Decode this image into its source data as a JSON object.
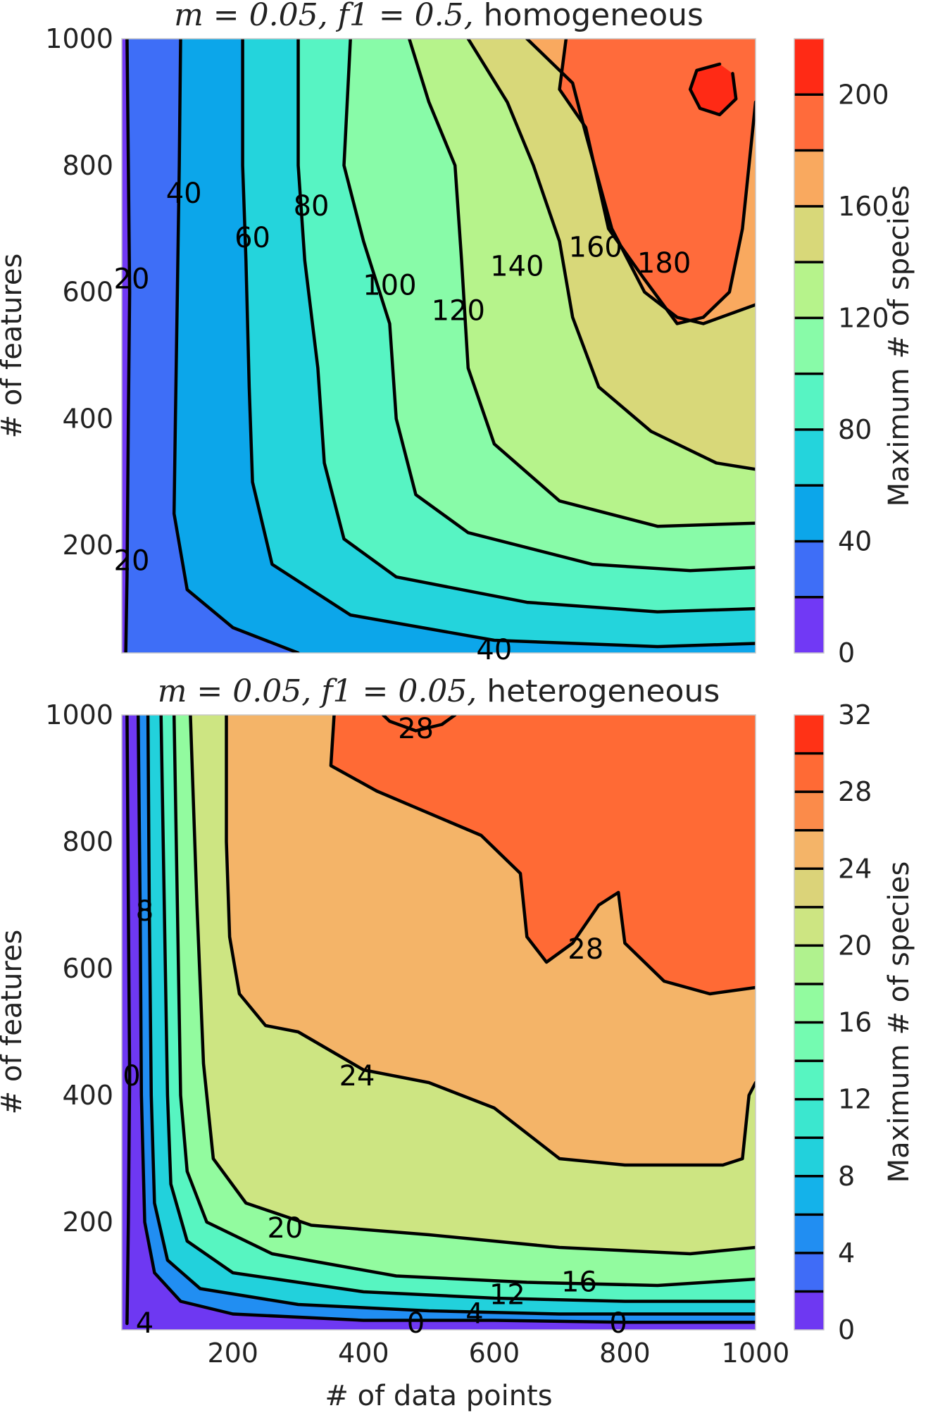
{
  "chart_data": [
    {
      "type": "heatmap",
      "subtype": "filled-contour",
      "title_math": "m = 0.05, f1 = 0.5,",
      "title_text": "homogeneous",
      "xlabel": "",
      "ylabel": "# of features",
      "colorbar_label": "Maximum # of species",
      "xlim": [
        30,
        1000
      ],
      "ylim": [
        30,
        1000
      ],
      "x_ticks": [],
      "y_ticks": [
        200,
        400,
        600,
        800,
        1000
      ],
      "colorbar_ticks": [
        0,
        40,
        80,
        120,
        160,
        200
      ],
      "levels": [
        0,
        20,
        40,
        60,
        80,
        100,
        120,
        140,
        160,
        180,
        200,
        220
      ],
      "level_colors": [
        "#7139f5",
        "#3e6ef7",
        "#0ca6ea",
        "#24d4dc",
        "#57f4c3",
        "#88fba8",
        "#b6f38b",
        "#d8d879",
        "#f9a95f",
        "#ff6b3b",
        "#ff2a15"
      ],
      "contour_labels": [
        {
          "text": "20",
          "x": 35,
          "y": 620
        },
        {
          "text": "20",
          "x": 40,
          "y": 175
        },
        {
          "text": "40",
          "x": 125,
          "y": 755
        },
        {
          "text": "60",
          "x": 230,
          "y": 685
        },
        {
          "text": "80",
          "x": 320,
          "y": 735
        },
        {
          "text": "100",
          "x": 440,
          "y": 610
        },
        {
          "text": "120",
          "x": 545,
          "y": 570
        },
        {
          "text": "140",
          "x": 635,
          "y": 640
        },
        {
          "text": "160",
          "x": 755,
          "y": 670
        },
        {
          "text": "180",
          "x": 860,
          "y": 645
        },
        {
          "text": "40",
          "x": 600,
          "y": 30
        }
      ],
      "contours": [
        {
          "level": 20,
          "points": [
            [
              38,
              1000
            ],
            [
              40,
              800
            ],
            [
              42,
              600
            ],
            [
              40,
              400
            ],
            [
              38,
              150
            ],
            [
              36,
              30
            ]
          ]
        },
        {
          "level": 40,
          "points": [
            [
              120,
              1000
            ],
            [
              118,
              800
            ],
            [
              115,
              600
            ],
            [
              112,
              400
            ],
            [
              110,
              250
            ],
            [
              130,
              130
            ],
            [
              200,
              70
            ],
            [
              300,
              30
            ]
          ]
        },
        {
          "level": 60,
          "points": [
            [
              215,
              1000
            ],
            [
              215,
              800
            ],
            [
              220,
              650
            ],
            [
              225,
              450
            ],
            [
              230,
              300
            ],
            [
              260,
              170
            ],
            [
              380,
              90
            ],
            [
              600,
              50
            ],
            [
              850,
              40
            ],
            [
              1000,
              45
            ]
          ]
        },
        {
          "level": 80,
          "points": [
            [
              300,
              1000
            ],
            [
              300,
              800
            ],
            [
              310,
              650
            ],
            [
              330,
              480
            ],
            [
              340,
              330
            ],
            [
              370,
              210
            ],
            [
              450,
              150
            ],
            [
              650,
              110
            ],
            [
              850,
              95
            ],
            [
              1000,
              100
            ]
          ]
        },
        {
          "level": 100,
          "points": [
            [
              380,
              1000
            ],
            [
              370,
              800
            ],
            [
              400,
              680
            ],
            [
              440,
              550
            ],
            [
              450,
              400
            ],
            [
              480,
              280
            ],
            [
              560,
              220
            ],
            [
              750,
              170
            ],
            [
              900,
              160
            ],
            [
              1000,
              165
            ]
          ]
        },
        {
          "level": 120,
          "points": [
            [
              470,
              1000
            ],
            [
              500,
              900
            ],
            [
              540,
              800
            ],
            [
              550,
              650
            ],
            [
              560,
              480
            ],
            [
              600,
              360
            ],
            [
              700,
              270
            ],
            [
              850,
              230
            ],
            [
              1000,
              235
            ]
          ]
        },
        {
          "level": 140,
          "points": [
            [
              560,
              1000
            ],
            [
              620,
              900
            ],
            [
              660,
              800
            ],
            [
              700,
              680
            ],
            [
              720,
              560
            ],
            [
              760,
              450
            ],
            [
              840,
              380
            ],
            [
              940,
              330
            ],
            [
              1000,
              320
            ]
          ]
        },
        {
          "level": 160,
          "points": [
            [
              650,
              1000
            ],
            [
              720,
              930
            ],
            [
              740,
              850
            ],
            [
              780,
              700
            ],
            [
              830,
              600
            ],
            [
              880,
              560
            ],
            [
              920,
              550
            ],
            [
              1000,
              580
            ]
          ]
        },
        {
          "level": 180,
          "points": [
            [
              710,
              1000
            ],
            [
              700,
              920
            ],
            [
              740,
              860
            ],
            [
              775,
              700
            ],
            [
              830,
              620
            ],
            [
              880,
              550
            ],
            [
              920,
              560
            ],
            [
              960,
              600
            ],
            [
              980,
              700
            ],
            [
              990,
              800
            ],
            [
              1000,
              900
            ]
          ]
        },
        {
          "level": 200,
          "points": [
            [
              945,
              960
            ],
            [
              910,
              950
            ],
            [
              900,
              920
            ],
            [
              915,
              890
            ],
            [
              945,
              880
            ],
            [
              970,
              905
            ],
            [
              965,
              945
            ]
          ]
        }
      ]
    },
    {
      "type": "heatmap",
      "subtype": "filled-contour",
      "title_math": "m = 0.05, f1 = 0.05,",
      "title_text": "heterogeneous",
      "xlabel": "# of data points",
      "ylabel": "# of features",
      "colorbar_label": "Maximum # of species",
      "xlim": [
        30,
        1000
      ],
      "ylim": [
        30,
        1000
      ],
      "x_ticks": [
        200,
        400,
        600,
        800,
        1000
      ],
      "y_ticks": [
        200,
        400,
        600,
        800,
        1000
      ],
      "colorbar_ticks": [
        0,
        4,
        8,
        12,
        16,
        20,
        24,
        28,
        32
      ],
      "levels": [
        0,
        2,
        4,
        6,
        8,
        10,
        12,
        14,
        16,
        18,
        20,
        22,
        24,
        26,
        28,
        30,
        32
      ],
      "level_colors": [
        "#6e38f2",
        "#3f6cf7",
        "#218ef2",
        "#14b2ea",
        "#22d1dc",
        "#3be7cf",
        "#57f5c1",
        "#74fbb1",
        "#92fb9f",
        "#b0f28e",
        "#cde582",
        "#dbd379",
        "#f4b468",
        "#fb8b4a",
        "#ff6a35",
        "#ff3216"
      ],
      "contour_labels": [
        {
          "text": "28",
          "x": 480,
          "y": 985
        },
        {
          "text": "8",
          "x": 65,
          "y": 690
        },
        {
          "text": "28",
          "x": 740,
          "y": 630
        },
        {
          "text": "0",
          "x": 40,
          "y": 430
        },
        {
          "text": "24",
          "x": 390,
          "y": 430
        },
        {
          "text": "20",
          "x": 280,
          "y": 190
        },
        {
          "text": "16",
          "x": 730,
          "y": 105
        },
        {
          "text": "12",
          "x": 620,
          "y": 85
        },
        {
          "text": "4",
          "x": 570,
          "y": 55
        },
        {
          "text": "0",
          "x": 480,
          "y": 40
        },
        {
          "text": "0",
          "x": 790,
          "y": 40
        },
        {
          "text": "4",
          "x": 65,
          "y": 40
        }
      ],
      "contours": [
        {
          "level": 0,
          "points": [
            [
              38,
              1000
            ],
            [
              40,
              700
            ],
            [
              42,
              430
            ],
            [
              40,
              200
            ],
            [
              38,
              40
            ]
          ]
        },
        {
          "level": 4,
          "points": [
            [
              55,
              1000
            ],
            [
              58,
              700
            ],
            [
              60,
              400
            ],
            [
              65,
              200
            ],
            [
              80,
              120
            ],
            [
              120,
              75
            ],
            [
              200,
              55
            ],
            [
              400,
              45
            ],
            [
              600,
              45
            ],
            [
              800,
              42
            ],
            [
              1000,
              42
            ]
          ]
        },
        {
          "level": 8,
          "points": [
            [
              70,
              1000
            ],
            [
              72,
              700
            ],
            [
              75,
              400
            ],
            [
              80,
              230
            ],
            [
              100,
              140
            ],
            [
              150,
              95
            ],
            [
              300,
              70
            ],
            [
              500,
              60
            ],
            [
              700,
              55
            ],
            [
              1000,
              55
            ]
          ]
        },
        {
          "level": 12,
          "points": [
            [
              90,
              1000
            ],
            [
              95,
              700
            ],
            [
              100,
              400
            ],
            [
              105,
              260
            ],
            [
              130,
              170
            ],
            [
              200,
              120
            ],
            [
              400,
              90
            ],
            [
              600,
              80
            ],
            [
              800,
              75
            ],
            [
              1000,
              75
            ]
          ]
        },
        {
          "level": 16,
          "points": [
            [
              110,
              1000
            ],
            [
              115,
              700
            ],
            [
              120,
              400
            ],
            [
              130,
              280
            ],
            [
              160,
              200
            ],
            [
              260,
              150
            ],
            [
              450,
              115
            ],
            [
              650,
              105
            ],
            [
              850,
              100
            ],
            [
              1000,
              110
            ]
          ]
        },
        {
          "level": 20,
          "points": [
            [
              135,
              1000
            ],
            [
              145,
              700
            ],
            [
              155,
              450
            ],
            [
              170,
              300
            ],
            [
              220,
              230
            ],
            [
              320,
              195
            ],
            [
              500,
              180
            ],
            [
              700,
              160
            ],
            [
              900,
              150
            ],
            [
              1000,
              160
            ]
          ]
        },
        {
          "level": 24,
          "points": [
            [
              190,
              1000
            ],
            [
              190,
              800
            ],
            [
              195,
              650
            ],
            [
              210,
              560
            ],
            [
              250,
              510
            ],
            [
              300,
              500
            ],
            [
              350,
              470
            ],
            [
              400,
              440
            ],
            [
              500,
              420
            ],
            [
              600,
              380
            ],
            [
              700,
              300
            ],
            [
              800,
              290
            ],
            [
              950,
              290
            ],
            [
              980,
              300
            ],
            [
              990,
              400
            ],
            [
              1000,
              420
            ]
          ]
        },
        {
          "level": 28,
          "points": [
            [
              430,
              1000
            ],
            [
              440,
              990
            ],
            [
              480,
              975
            ],
            [
              520,
              985
            ],
            [
              540,
              1000
            ]
          ]
        },
        {
          "level": 28,
          "points": [
            [
              355,
              1000
            ],
            [
              350,
              920
            ],
            [
              420,
              880
            ],
            [
              580,
              810
            ],
            [
              640,
              750
            ],
            [
              650,
              650
            ],
            [
              680,
              610
            ],
            [
              720,
              640
            ],
            [
              760,
              700
            ],
            [
              790,
              720
            ],
            [
              800,
              640
            ],
            [
              860,
              580
            ],
            [
              930,
              560
            ],
            [
              1000,
              570
            ]
          ]
        }
      ]
    }
  ]
}
